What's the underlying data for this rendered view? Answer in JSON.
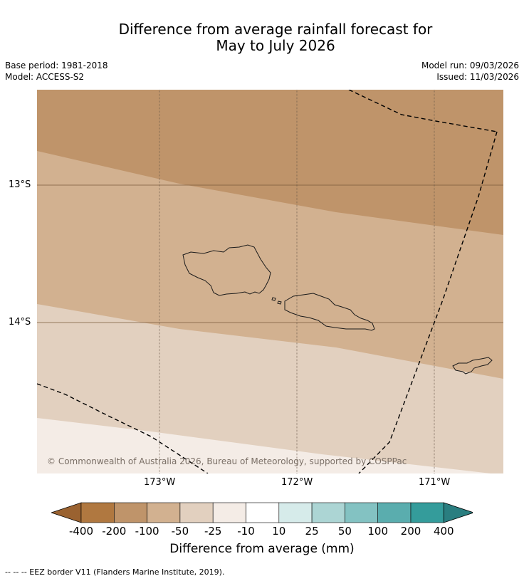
{
  "title_line1": "Difference from average rainfall forecast for",
  "title_line2": "May to July 2026",
  "base_period": "Base period: 1981-2018",
  "model": "Model: ACCESS-S2",
  "model_run": "Model run: 09/03/2026",
  "issued": "Issued: 11/03/2026",
  "lat_labels": [
    "13°S",
    "14°S"
  ],
  "lon_labels": [
    "173°W",
    "172°W",
    "171°W"
  ],
  "copyright": "© Commonwealth of Australia 2026, Bureau of Meteorology, supported by COSPPac",
  "colorbar": {
    "ticks": [
      "-400",
      "-200",
      "-100",
      "-50",
      "-25",
      "-10",
      "10",
      "25",
      "50",
      "100",
      "200",
      "400"
    ],
    "colors": [
      "#9a6230",
      "#b07840",
      "#bf946a",
      "#d2b190",
      "#e2d0bf",
      "#f4ece6",
      "#ffffff",
      "#d6ebea",
      "#acd5d4",
      "#83c2c2",
      "#5aadae",
      "#349c9b",
      "#2a7e80"
    ],
    "label": "Difference from average (mm)"
  },
  "footnote": "-- -- -- EEZ border V11 (Flanders Marine Institute, 2019)."
}
